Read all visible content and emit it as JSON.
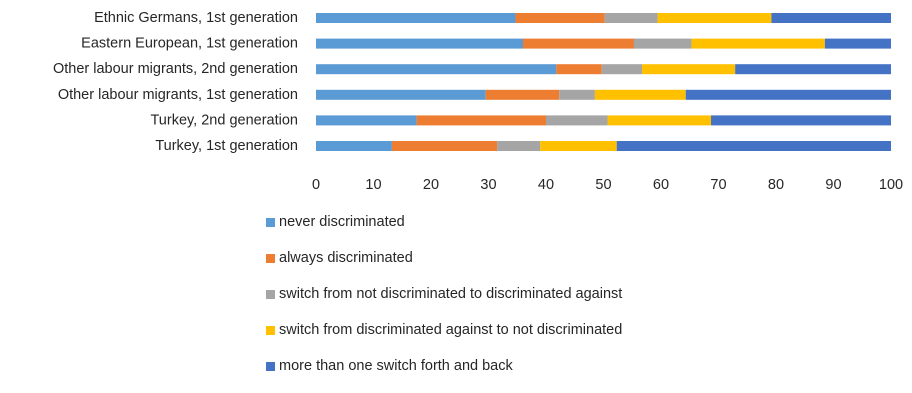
{
  "chart_data": {
    "type": "bar",
    "orientation": "horizontal",
    "stacked": true,
    "categories": [
      "Ethnic Germans, 1st generation",
      "Eastern European, 1st generation",
      "Other labour migrants, 2nd generation",
      "Other labour migrants, 1st generation",
      "Turkey, 2nd generation",
      "Turkey, 1st generation"
    ],
    "series": [
      {
        "name": "never discriminated",
        "color": "#5B9BD5",
        "values": [
          34.7,
          36.0,
          41.8,
          29.5,
          17.5,
          13.2
        ]
      },
      {
        "name": "always discriminated",
        "color": "#ED7D31",
        "values": [
          15.5,
          19.3,
          7.9,
          12.8,
          22.5,
          18.3
        ]
      },
      {
        "name": "switch from not discriminated to discriminated against",
        "color": "#A5A5A5",
        "values": [
          9.2,
          10.0,
          7.0,
          6.2,
          10.7,
          7.5
        ]
      },
      {
        "name": "switch from discriminated against to not discriminated",
        "color": "#FFC000",
        "values": [
          19.8,
          23.2,
          16.2,
          15.8,
          18.0,
          13.3
        ]
      },
      {
        "name": "more than one switch forth and back",
        "color": "#4472C4",
        "values": [
          20.8,
          11.5,
          27.1,
          35.7,
          31.3,
          47.7
        ]
      }
    ],
    "x_ticks": [
      "0",
      "10",
      "20",
      "30",
      "40",
      "50",
      "60",
      "70",
      "80",
      "90",
      "100"
    ],
    "xlim": [
      0,
      100
    ],
    "grid": false,
    "legend_position": "bottom"
  }
}
